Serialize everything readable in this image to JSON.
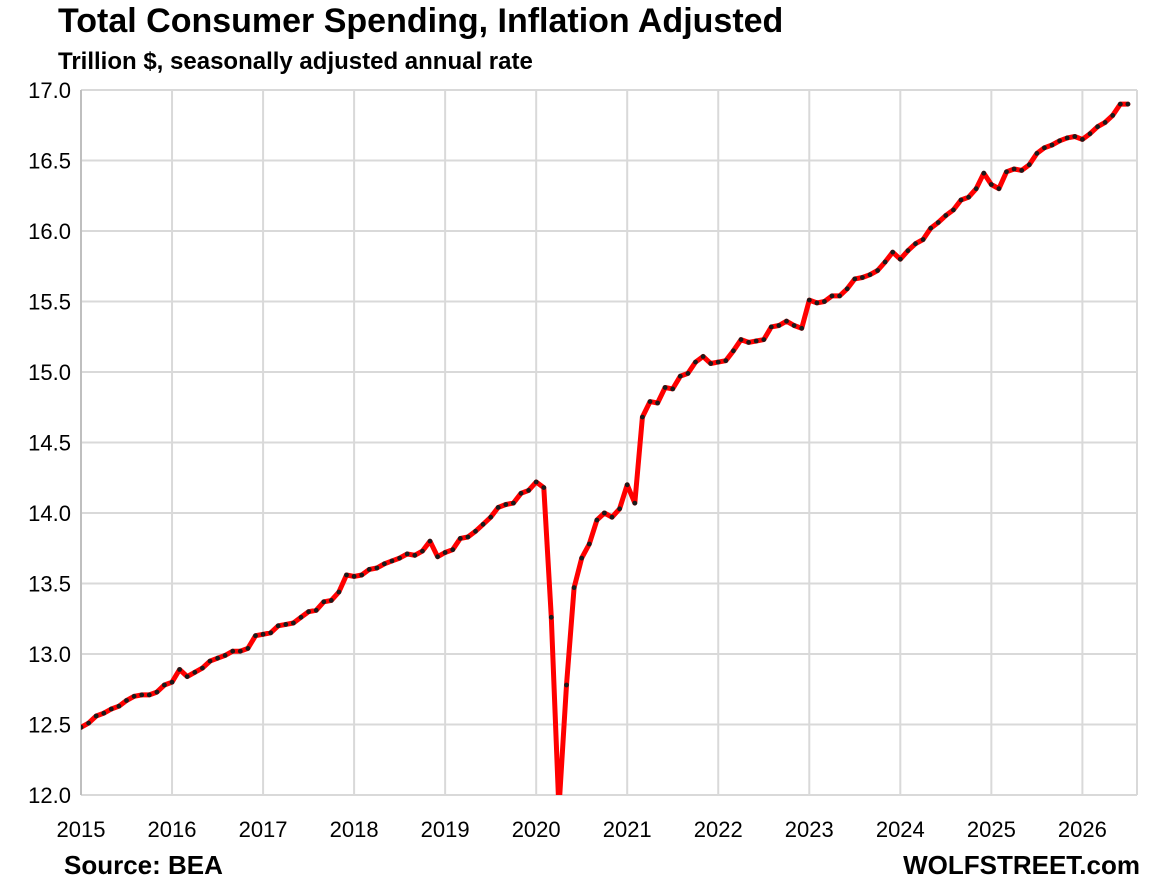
{
  "title": "Total Consumer Spending, Inflation Adjusted",
  "subtitle": "Trillion $, seasonally adjusted annual rate",
  "source": "Source: BEA",
  "brand": "WOLFSTREET.com",
  "colors": {
    "line": "#ff0000",
    "marker": "#1a1a1a",
    "grid": "#d9d9d9"
  },
  "chart_data": {
    "type": "line",
    "title": "Total Consumer Spending, Inflation Adjusted",
    "ylabel": "Trillion $, seasonally adjusted annual rate",
    "xlabel": "",
    "xlim": [
      2015,
      2026.6
    ],
    "ylim": [
      12.0,
      17.0
    ],
    "grid": true,
    "x_ticks": [
      "2015",
      "2016",
      "2017",
      "2018",
      "2019",
      "2020",
      "2021",
      "2022",
      "2023",
      "2024",
      "2025",
      "2026"
    ],
    "y_ticks": [
      "12.0",
      "12.5",
      "13.0",
      "13.5",
      "14.0",
      "14.5",
      "15.0",
      "15.5",
      "16.0",
      "16.5",
      "17.0"
    ],
    "series": [
      {
        "start": "2015-01",
        "frequency": "monthly",
        "values": [
          12.48,
          12.51,
          12.56,
          12.58,
          12.61,
          12.63,
          12.67,
          12.7,
          12.71,
          12.71,
          12.73,
          12.78,
          12.8,
          12.89,
          12.84,
          12.87,
          12.9,
          12.95,
          12.97,
          12.99,
          13.02,
          13.02,
          13.04,
          13.13,
          13.14,
          13.15,
          13.2,
          13.21,
          13.22,
          13.26,
          13.3,
          13.31,
          13.37,
          13.38,
          13.44,
          13.56,
          13.55,
          13.56,
          13.6,
          13.61,
          13.64,
          13.66,
          13.68,
          13.71,
          13.7,
          13.73,
          13.8,
          13.69,
          13.72,
          13.74,
          13.82,
          13.83,
          13.87,
          13.92,
          13.97,
          14.04,
          14.06,
          14.07,
          14.14,
          14.16,
          14.22,
          14.18,
          13.26,
          11.9,
          12.78,
          13.47,
          13.68,
          13.78,
          13.95,
          14.0,
          13.97,
          14.03,
          14.2,
          14.07,
          14.68,
          14.79,
          14.78,
          14.89,
          14.88,
          14.97,
          14.99,
          15.07,
          15.11,
          15.06,
          15.07,
          15.08,
          15.15,
          15.23,
          15.21,
          15.22,
          15.23,
          15.32,
          15.33,
          15.36,
          15.33,
          15.31,
          15.51,
          15.49,
          15.5,
          15.54,
          15.54,
          15.59,
          15.66,
          15.67,
          15.69,
          15.72,
          15.78,
          15.85,
          15.8,
          15.86,
          15.91,
          15.94,
          16.02,
          16.06,
          16.11,
          16.15,
          16.22,
          16.24,
          16.3,
          16.41,
          16.33,
          16.3,
          16.42,
          16.44,
          16.43,
          16.47,
          16.55,
          16.59,
          16.61,
          16.64,
          16.66,
          16.67,
          16.65,
          16.69,
          16.74,
          16.77,
          16.82,
          16.9,
          16.9
        ]
      }
    ]
  }
}
